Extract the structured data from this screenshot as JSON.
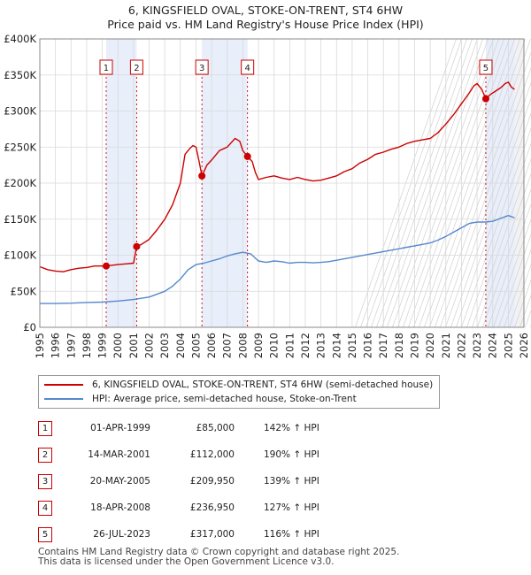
{
  "title_line1": "6, KINGSFIELD OVAL, STOKE-ON-TRENT, ST4 6HW",
  "title_line2": "Price paid vs. HM Land Registry's House Price Index (HPI)",
  "chart_data": {
    "type": "line",
    "title": "6, KINGSFIELD OVAL, STOKE-ON-TRENT, ST4 6HW — Price paid vs. HM Land Registry's House Price Index (HPI)",
    "x_range": [
      1995,
      2026
    ],
    "ylim": [
      0,
      400000
    ],
    "y_ticks": [
      0,
      50000,
      100000,
      150000,
      200000,
      250000,
      300000,
      350000,
      400000
    ],
    "y_tick_labels": [
      "£0",
      "£50K",
      "£100K",
      "£150K",
      "£200K",
      "£250K",
      "£300K",
      "£350K",
      "£400K"
    ],
    "x_ticks": [
      1995,
      1996,
      1997,
      1998,
      1999,
      2000,
      2001,
      2002,
      2003,
      2004,
      2005,
      2006,
      2007,
      2008,
      2009,
      2010,
      2011,
      2012,
      2013,
      2014,
      2015,
      2016,
      2017,
      2018,
      2019,
      2020,
      2021,
      2022,
      2023,
      2024,
      2025,
      2026
    ],
    "grid": true,
    "data_end_year": 2025.4,
    "series": [
      {
        "name": "6, KINGSFIELD OVAL, STOKE-ON-TRENT, ST4 6HW (semi-detached house)",
        "color": "#cc0000",
        "points": [
          [
            1995.0,
            84000
          ],
          [
            1995.5,
            80000
          ],
          [
            1996.0,
            78000
          ],
          [
            1996.5,
            77000
          ],
          [
            1997.0,
            80000
          ],
          [
            1997.5,
            82000
          ],
          [
            1998.0,
            83000
          ],
          [
            1998.5,
            85000
          ],
          [
            1999.0,
            85000
          ],
          [
            1999.25,
            85000
          ],
          [
            2000.0,
            87000
          ],
          [
            2000.5,
            88000
          ],
          [
            2001.0,
            89000
          ],
          [
            2001.2,
            112000
          ],
          [
            2001.5,
            115000
          ],
          [
            2002.0,
            122000
          ],
          [
            2002.5,
            135000
          ],
          [
            2003.0,
            150000
          ],
          [
            2003.5,
            170000
          ],
          [
            2004.0,
            200000
          ],
          [
            2004.3,
            240000
          ],
          [
            2004.6,
            248000
          ],
          [
            2004.8,
            252000
          ],
          [
            2005.0,
            250000
          ],
          [
            2005.2,
            230000
          ],
          [
            2005.38,
            209950
          ],
          [
            2005.7,
            225000
          ],
          [
            2006.0,
            232000
          ],
          [
            2006.5,
            245000
          ],
          [
            2007.0,
            250000
          ],
          [
            2007.5,
            262000
          ],
          [
            2007.8,
            258000
          ],
          [
            2008.0,
            245000
          ],
          [
            2008.3,
            236950
          ],
          [
            2008.6,
            230000
          ],
          [
            2008.8,
            215000
          ],
          [
            2009.0,
            205000
          ],
          [
            2009.5,
            208000
          ],
          [
            2010.0,
            210000
          ],
          [
            2010.5,
            207000
          ],
          [
            2011.0,
            205000
          ],
          [
            2011.5,
            208000
          ],
          [
            2012.0,
            205000
          ],
          [
            2012.5,
            203000
          ],
          [
            2013.0,
            204000
          ],
          [
            2013.5,
            207000
          ],
          [
            2014.0,
            210000
          ],
          [
            2014.5,
            216000
          ],
          [
            2015.0,
            220000
          ],
          [
            2015.5,
            228000
          ],
          [
            2016.0,
            233000
          ],
          [
            2016.5,
            240000
          ],
          [
            2017.0,
            243000
          ],
          [
            2017.5,
            247000
          ],
          [
            2018.0,
            250000
          ],
          [
            2018.5,
            255000
          ],
          [
            2019.0,
            258000
          ],
          [
            2019.5,
            260000
          ],
          [
            2020.0,
            262000
          ],
          [
            2020.5,
            270000
          ],
          [
            2021.0,
            282000
          ],
          [
            2021.5,
            295000
          ],
          [
            2022.0,
            310000
          ],
          [
            2022.5,
            325000
          ],
          [
            2022.8,
            335000
          ],
          [
            2023.0,
            338000
          ],
          [
            2023.3,
            330000
          ],
          [
            2023.56,
            317000
          ],
          [
            2023.8,
            322000
          ],
          [
            2024.0,
            325000
          ],
          [
            2024.5,
            332000
          ],
          [
            2024.8,
            338000
          ],
          [
            2025.0,
            340000
          ],
          [
            2025.2,
            333000
          ],
          [
            2025.4,
            330000
          ]
        ]
      },
      {
        "name": "HPI: Average price, semi-detached house, Stoke-on-Trent",
        "color": "#5588cc",
        "points": [
          [
            1995.0,
            33000
          ],
          [
            1996.0,
            33000
          ],
          [
            1997.0,
            33500
          ],
          [
            1998.0,
            34500
          ],
          [
            1999.0,
            35000
          ],
          [
            2000.0,
            36500
          ],
          [
            2001.0,
            38500
          ],
          [
            2002.0,
            42000
          ],
          [
            2003.0,
            50000
          ],
          [
            2003.5,
            57000
          ],
          [
            2004.0,
            67000
          ],
          [
            2004.5,
            80000
          ],
          [
            2005.0,
            87000
          ],
          [
            2005.5,
            89000
          ],
          [
            2006.0,
            92000
          ],
          [
            2006.5,
            95000
          ],
          [
            2007.0,
            99000
          ],
          [
            2007.5,
            102000
          ],
          [
            2008.0,
            104000
          ],
          [
            2008.5,
            102000
          ],
          [
            2009.0,
            92000
          ],
          [
            2009.5,
            90000
          ],
          [
            2010.0,
            92000
          ],
          [
            2010.5,
            91000
          ],
          [
            2011.0,
            89000
          ],
          [
            2011.5,
            90000
          ],
          [
            2012.0,
            90000
          ],
          [
            2012.5,
            89500
          ],
          [
            2013.0,
            90000
          ],
          [
            2013.5,
            91000
          ],
          [
            2014.0,
            93000
          ],
          [
            2014.5,
            95000
          ],
          [
            2015.0,
            97000
          ],
          [
            2015.5,
            99000
          ],
          [
            2016.0,
            101000
          ],
          [
            2016.5,
            103000
          ],
          [
            2017.0,
            105000
          ],
          [
            2017.5,
            107000
          ],
          [
            2018.0,
            109000
          ],
          [
            2018.5,
            111000
          ],
          [
            2019.0,
            113000
          ],
          [
            2019.5,
            115000
          ],
          [
            2020.0,
            117000
          ],
          [
            2020.5,
            121000
          ],
          [
            2021.0,
            126000
          ],
          [
            2021.5,
            132000
          ],
          [
            2022.0,
            138000
          ],
          [
            2022.5,
            144000
          ],
          [
            2023.0,
            146000
          ],
          [
            2023.5,
            146000
          ],
          [
            2024.0,
            147000
          ],
          [
            2024.5,
            151000
          ],
          [
            2025.0,
            155000
          ],
          [
            2025.4,
            152000
          ]
        ]
      }
    ],
    "shaded_periods": [
      [
        1999.25,
        2001.2
      ],
      [
        2005.38,
        2008.3
      ],
      [
        2023.56,
        2025.4
      ]
    ],
    "markers": [
      {
        "label": "1",
        "year": 1999.25,
        "value": 85000
      },
      {
        "label": "2",
        "year": 2001.2,
        "value": 112000
      },
      {
        "label": "3",
        "year": 2005.38,
        "value": 209950
      },
      {
        "label": "4",
        "year": 2008.3,
        "value": 236950
      },
      {
        "label": "5",
        "year": 2023.56,
        "value": 317000
      }
    ]
  },
  "legend": {
    "property_label": "6, KINGSFIELD OVAL, STOKE-ON-TRENT, ST4 6HW (semi-detached house)",
    "hpi_label": "HPI: Average price, semi-detached house, Stoke-on-Trent"
  },
  "sales": [
    {
      "num": "1",
      "date": "01-APR-1999",
      "price": "£85,000",
      "hpi": "142% ↑ HPI"
    },
    {
      "num": "2",
      "date": "14-MAR-2001",
      "price": "£112,000",
      "hpi": "190% ↑ HPI"
    },
    {
      "num": "3",
      "date": "20-MAY-2005",
      "price": "£209,950",
      "hpi": "139% ↑ HPI"
    },
    {
      "num": "4",
      "date": "18-APR-2008",
      "price": "£236,950",
      "hpi": "127% ↑ HPI"
    },
    {
      "num": "5",
      "date": "26-JUL-2023",
      "price": "£317,000",
      "hpi": "116% ↑ HPI"
    }
  ],
  "footer_line1": "Contains HM Land Registry data © Crown copyright and database right 2025.",
  "footer_line2": "This data is licensed under the Open Government Licence v3.0."
}
